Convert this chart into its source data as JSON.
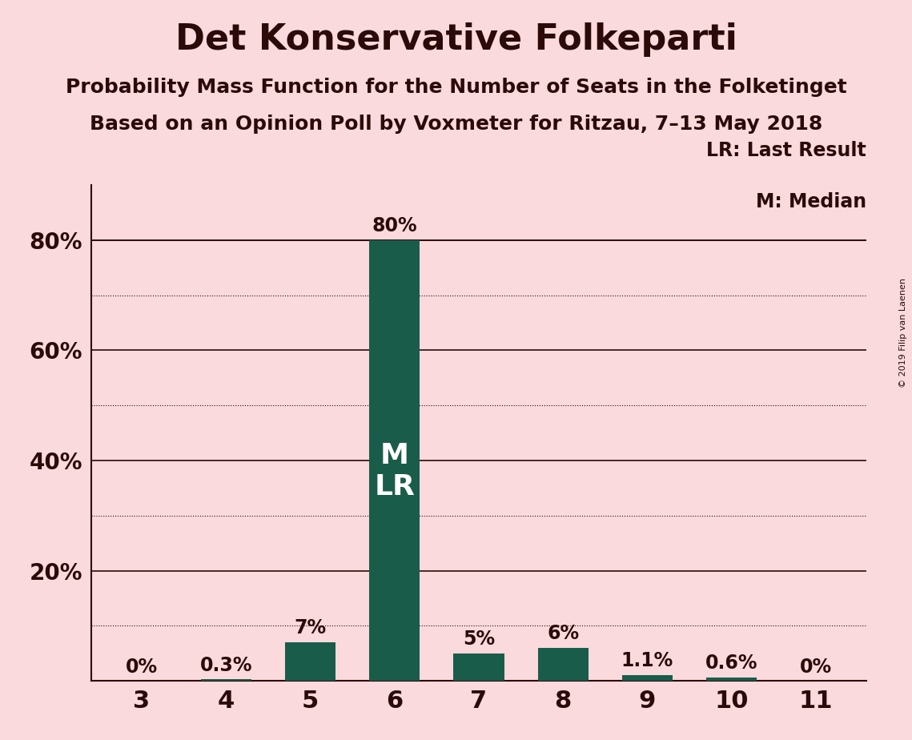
{
  "title": "Det Konservative Folkeparti",
  "subtitle1": "Probability Mass Function for the Number of Seats in the Folketinget",
  "subtitle2": "Based on an Opinion Poll by Voxmeter for Ritzau, 7–13 May 2018",
  "copyright": "© 2019 Filip van Laenen",
  "categories": [
    3,
    4,
    5,
    6,
    7,
    8,
    9,
    10,
    11
  ],
  "values": [
    0.0,
    0.3,
    7.0,
    80.0,
    5.0,
    6.0,
    1.1,
    0.6,
    0.0
  ],
  "bar_labels": [
    "0%",
    "0.3%",
    "7%",
    "80%",
    "5%",
    "6%",
    "1.1%",
    "0.6%",
    "0%"
  ],
  "bar_color": "#1a5c4a",
  "background_color": "#fadadd",
  "text_color": "#2d0a0a",
  "ylim": [
    0,
    90
  ],
  "solid_lines": [
    20,
    40,
    60,
    80
  ],
  "dotted_lines": [
    10,
    30,
    50,
    70
  ],
  "ytick_positions": [
    20,
    40,
    60,
    80
  ],
  "ytick_labels": [
    "20%",
    "40%",
    "60%",
    "80%"
  ],
  "median_seat": 6,
  "last_result_seat": 6,
  "legend_lr": "LR: Last Result",
  "legend_m": "M: Median",
  "title_fontsize": 32,
  "subtitle_fontsize": 18,
  "label_fontsize": 17,
  "tick_fontsize": 20,
  "ml_fontsize": 26
}
